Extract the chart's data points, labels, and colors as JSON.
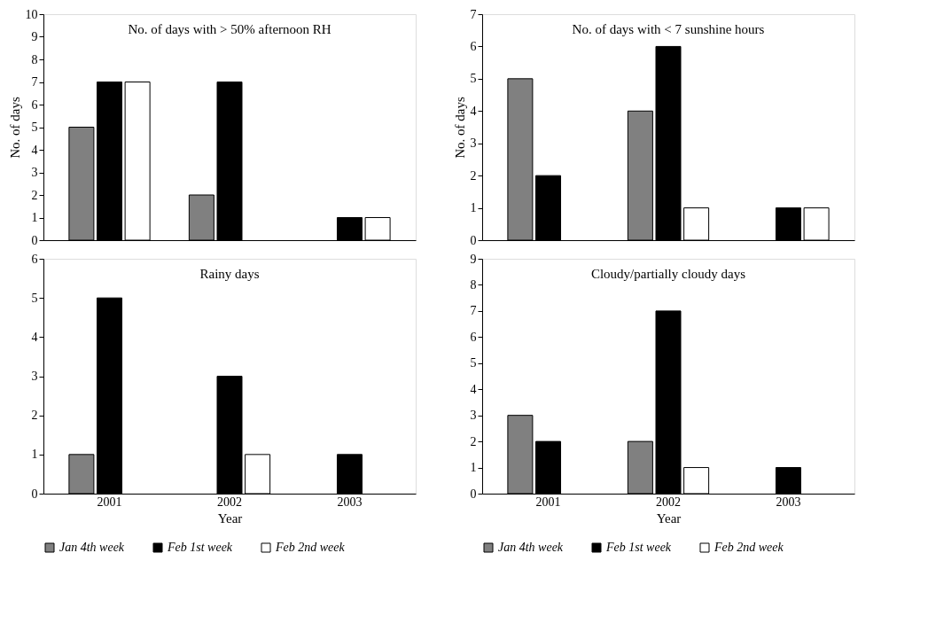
{
  "chart_data": [
    {
      "type": "bar",
      "title": "No. of days with > 50% afternoon RH",
      "ylabel": "No. of days",
      "categories": [
        "2001",
        "2002",
        "2003"
      ],
      "ylim": [
        0,
        10
      ],
      "yticks": [
        0,
        1,
        2,
        3,
        4,
        5,
        6,
        7,
        8,
        9,
        10
      ],
      "tick_labels": "y",
      "grid": false,
      "legend": "bottom",
      "series": [
        {
          "name": "Jan 4th week",
          "color": "#808080",
          "values": [
            5,
            2,
            null
          ]
        },
        {
          "name": "Feb 1st week",
          "color": "#000000",
          "values": [
            7,
            7,
            1
          ]
        },
        {
          "name": "Feb 2nd week",
          "color": "#ffffff",
          "values": [
            7,
            null,
            1
          ]
        }
      ]
    },
    {
      "type": "bar",
      "title": "Rainy days",
      "xlabel": "Year",
      "categories": [
        "2001",
        "2002",
        "2003"
      ],
      "ylim": [
        0,
        6
      ],
      "yticks": [
        0,
        1,
        2,
        3,
        4,
        5,
        6
      ],
      "grid": false,
      "legend": "bottom",
      "series": [
        {
          "name": "Jan 4th week",
          "color": "#808080",
          "values": [
            1,
            null,
            null
          ]
        },
        {
          "name": "Feb 1st week",
          "color": "#000000",
          "values": [
            5,
            3,
            1
          ]
        },
        {
          "name": "Feb 2nd week",
          "color": "#ffffff",
          "values": [
            null,
            1,
            null
          ]
        }
      ]
    },
    {
      "type": "bar",
      "title": "No. of days with < 7 sunshine hours",
      "ylabel": "No. of days",
      "categories": [
        "2001",
        "2002",
        "2003"
      ],
      "ylim": [
        0,
        7
      ],
      "yticks": [
        0,
        1,
        2,
        3,
        4,
        5,
        6,
        7
      ],
      "tick_labels": "y",
      "grid": false,
      "legend": "bottom",
      "series": [
        {
          "name": "Jan 4th week",
          "color": "#808080",
          "values": [
            5,
            4,
            null
          ]
        },
        {
          "name": "Feb 1st week",
          "color": "#000000",
          "values": [
            2,
            6,
            1
          ]
        },
        {
          "name": "Feb 2nd week",
          "color": "#ffffff",
          "values": [
            null,
            1,
            1
          ]
        }
      ]
    },
    {
      "type": "bar",
      "title": "Cloudy/partially cloudy days",
      "xlabel": "Year",
      "categories": [
        "2001",
        "2002",
        "2003"
      ],
      "ylim": [
        0,
        9
      ],
      "yticks": [
        0,
        1,
        2,
        3,
        4,
        5,
        6,
        7,
        8,
        9
      ],
      "grid": false,
      "legend": "bottom",
      "series": [
        {
          "name": "Jan 4th week",
          "color": "#808080",
          "values": [
            3,
            2,
            null
          ]
        },
        {
          "name": "Feb 1st week",
          "color": "#000000",
          "values": [
            2,
            7,
            1
          ]
        },
        {
          "name": "Feb 2nd week",
          "color": "#ffffff",
          "values": [
            null,
            1,
            null
          ]
        }
      ]
    }
  ]
}
